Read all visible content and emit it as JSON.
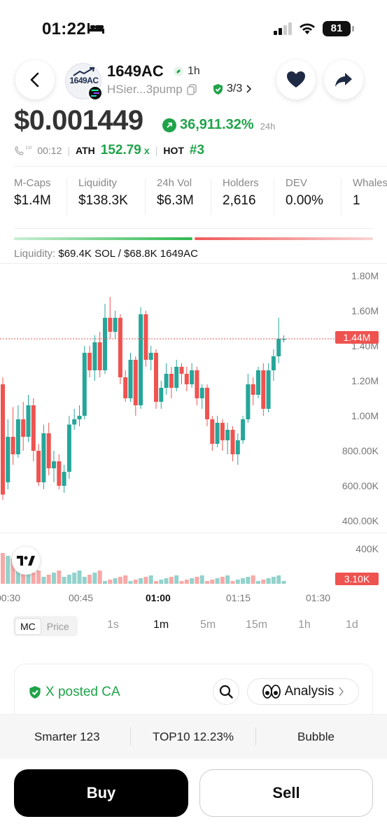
{
  "status_bar": {
    "time": "01:22",
    "battery": "81"
  },
  "token": {
    "name": "1649AC",
    "logo_text": "1649AC",
    "age": "1h",
    "address": "HSier...3pump",
    "audit": "3/3",
    "price": "$0.001449",
    "change_pct": "36,911.32%",
    "change_period": "24h"
  },
  "meta": {
    "badge": "1st",
    "time": "00:12",
    "ath_label": "ATH",
    "ath_value": "152.79",
    "ath_suffix": "x",
    "hot_label": "HOT",
    "hot_value": "#3"
  },
  "stats": [
    {
      "label": "M-Caps",
      "value": "$1.4M"
    },
    {
      "label": "Liquidity",
      "value": "$138.3K"
    },
    {
      "label": "24h Vol",
      "value": "$6.3M"
    },
    {
      "label": "Holders",
      "value": "2,616"
    },
    {
      "label": "DEV",
      "value": "0.00%"
    },
    {
      "label": "Whales",
      "value": "1"
    }
  ],
  "liquidity": {
    "label": "Liquidity:",
    "value": "$69.4K SOL / $68.8K 1649AC",
    "sol_share": 0.502
  },
  "chart": {
    "y_labels": [
      "1.80M",
      "1.60M",
      "1.40M",
      "1.20M",
      "1.00M",
      "800.00K",
      "600.00K",
      "400.00K"
    ],
    "current_tag": "1.44M",
    "volume_labels": [
      "400K",
      "3.10K"
    ],
    "x_labels": [
      "00:30",
      "00:45",
      "01:00",
      "01:15",
      "01:30"
    ],
    "colors": {
      "up": "#26a69a",
      "down": "#ef5350",
      "tag": "#ef5350"
    }
  },
  "chart_data": {
    "type": "candlestick",
    "x": [
      "00:30",
      "00:45",
      "01:00",
      "01:15",
      "01:30"
    ],
    "ylim": [
      400000,
      1800000
    ],
    "current": 1440000,
    "volume_max": "400K",
    "volume_last": "3.10K"
  },
  "timeframes": {
    "mc_label": "MC",
    "price_label": "Price",
    "options": [
      "1s",
      "1m",
      "5m",
      "15m",
      "1h",
      "1d"
    ],
    "active": "1m"
  },
  "card": {
    "x_posted": "X posted CA",
    "analysis_label": "Analysis"
  },
  "bottom_tabs": [
    "Smarter 123",
    "TOP10 12.23%",
    "Bubble"
  ],
  "actions": {
    "buy": "Buy",
    "sell": "Sell"
  }
}
